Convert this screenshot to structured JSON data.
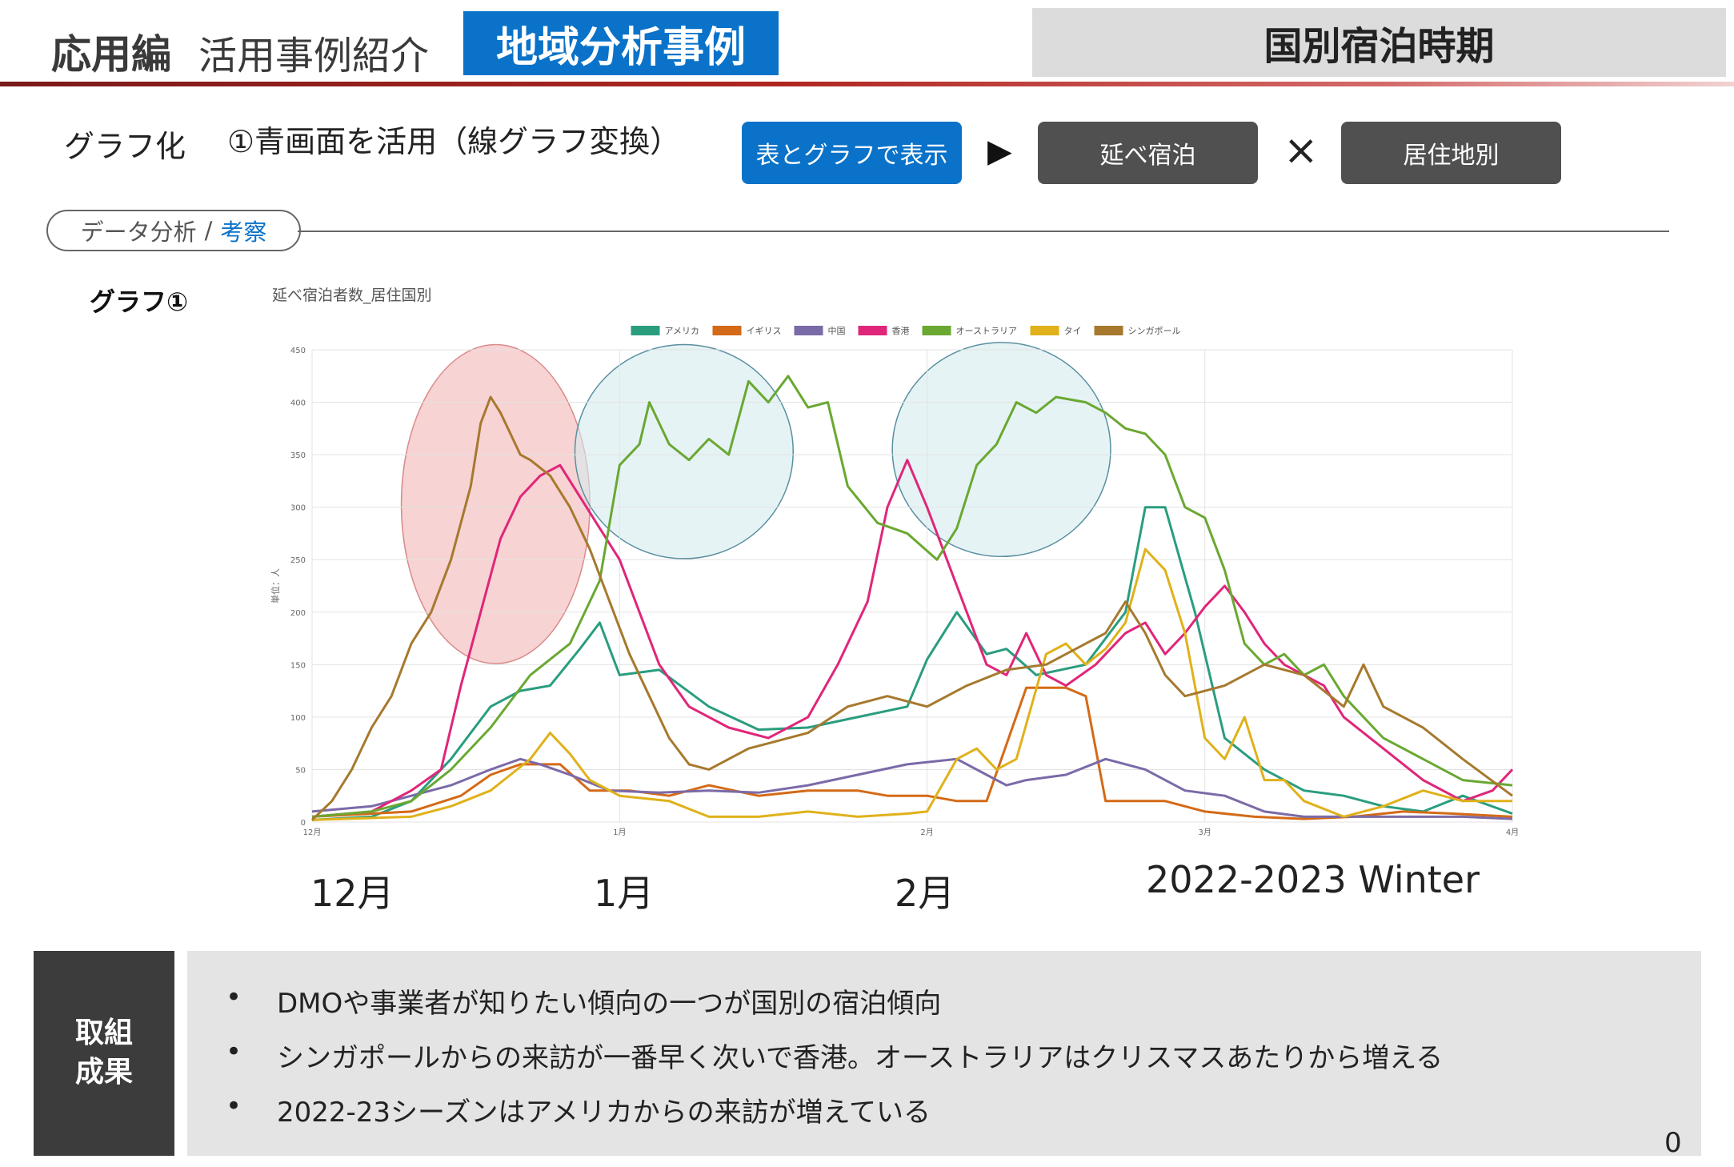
{
  "header": {
    "main": "応用編",
    "sub": "活用事例紹介",
    "tag": "地域分析事例",
    "right": "国別宿泊時期"
  },
  "steps": {
    "label": "グラフ化",
    "description": "①青画面を活用（線グラフ変換）",
    "button_table": "表とグラフで表示",
    "arrow": "▶",
    "button_nobe": "延べ宿泊",
    "times": "×",
    "button_residence": "居住地別"
  },
  "analysis_pill": {
    "left": "データ分析",
    "sep": "/",
    "right": "考察"
  },
  "graph_label": "グラフ①",
  "chart_data": {
    "type": "line",
    "title": "延べ宿泊者数_居住国別",
    "ylabel": "単位：人",
    "ylim": [
      0,
      450
    ],
    "y_ticks": [
      0,
      50,
      100,
      150,
      200,
      250,
      300,
      350,
      400,
      450
    ],
    "x_tick_labels": [
      "12月",
      "1月",
      "2月",
      "3月",
      "4月"
    ],
    "x_tick_days": [
      0,
      31,
      62,
      90,
      121
    ],
    "x_range_days": [
      0,
      121
    ],
    "legend_position": "top",
    "grid": true,
    "big_labels": [
      "12月",
      "1月",
      "2月",
      "2022-2023 Winter"
    ],
    "highlight_ellipses": [
      {
        "center_day": 18.5,
        "center_value": 303,
        "half_width_days": 9.5,
        "half_height_value": 152,
        "color": "#f2b5b5"
      },
      {
        "center_day": 37.5,
        "center_value": 353,
        "half_width_days": 11,
        "half_height_value": 102,
        "color": "#d6ebee"
      },
      {
        "center_day": 69.5,
        "center_value": 355,
        "half_width_days": 11,
        "half_height_value": 102,
        "color": "#d6ebee"
      }
    ],
    "series": [
      {
        "name": "アメリカ",
        "color": "#2a9d7f",
        "points": [
          [
            0,
            2
          ],
          [
            6,
            5
          ],
          [
            10,
            20
          ],
          [
            14,
            60
          ],
          [
            18,
            110
          ],
          [
            21,
            125
          ],
          [
            24,
            130
          ],
          [
            27,
            165
          ],
          [
            29,
            190
          ],
          [
            31,
            140
          ],
          [
            35,
            145
          ],
          [
            40,
            110
          ],
          [
            45,
            88
          ],
          [
            50,
            90
          ],
          [
            55,
            100
          ],
          [
            60,
            110
          ],
          [
            62,
            155
          ],
          [
            65,
            200
          ],
          [
            68,
            160
          ],
          [
            70,
            165
          ],
          [
            73,
            140
          ],
          [
            78,
            150
          ],
          [
            82,
            200
          ],
          [
            84,
            300
          ],
          [
            86,
            300
          ],
          [
            89,
            200
          ],
          [
            92,
            80
          ],
          [
            96,
            50
          ],
          [
            100,
            30
          ],
          [
            104,
            25
          ],
          [
            108,
            15
          ],
          [
            112,
            10
          ],
          [
            116,
            25
          ],
          [
            121,
            8
          ]
        ]
      },
      {
        "name": "イギリス",
        "color": "#d46a17",
        "points": [
          [
            0,
            5
          ],
          [
            10,
            10
          ],
          [
            15,
            25
          ],
          [
            18,
            45
          ],
          [
            21,
            55
          ],
          [
            25,
            55
          ],
          [
            28,
            30
          ],
          [
            32,
            30
          ],
          [
            36,
            25
          ],
          [
            40,
            35
          ],
          [
            45,
            25
          ],
          [
            50,
            30
          ],
          [
            55,
            30
          ],
          [
            58,
            25
          ],
          [
            62,
            25
          ],
          [
            65,
            20
          ],
          [
            68,
            20
          ],
          [
            72,
            128
          ],
          [
            76,
            128
          ],
          [
            78,
            120
          ],
          [
            80,
            20
          ],
          [
            86,
            20
          ],
          [
            90,
            10
          ],
          [
            95,
            5
          ],
          [
            100,
            3
          ],
          [
            105,
            5
          ],
          [
            110,
            10
          ],
          [
            115,
            8
          ],
          [
            121,
            5
          ]
        ]
      },
      {
        "name": "中国",
        "color": "#7b6aa8",
        "points": [
          [
            0,
            10
          ],
          [
            6,
            15
          ],
          [
            10,
            25
          ],
          [
            14,
            35
          ],
          [
            18,
            50
          ],
          [
            21,
            60
          ],
          [
            23,
            55
          ],
          [
            26,
            45
          ],
          [
            30,
            30
          ],
          [
            35,
            28
          ],
          [
            40,
            30
          ],
          [
            45,
            28
          ],
          [
            50,
            35
          ],
          [
            55,
            45
          ],
          [
            60,
            55
          ],
          [
            65,
            60
          ],
          [
            68,
            45
          ],
          [
            70,
            35
          ],
          [
            72,
            40
          ],
          [
            76,
            45
          ],
          [
            80,
            60
          ],
          [
            84,
            50
          ],
          [
            88,
            30
          ],
          [
            92,
            25
          ],
          [
            96,
            10
          ],
          [
            100,
            5
          ],
          [
            105,
            5
          ],
          [
            110,
            5
          ],
          [
            116,
            5
          ],
          [
            121,
            3
          ]
        ]
      },
      {
        "name": "香港",
        "color": "#e0267a",
        "points": [
          [
            0,
            5
          ],
          [
            6,
            10
          ],
          [
            10,
            30
          ],
          [
            13,
            50
          ],
          [
            15,
            130
          ],
          [
            17,
            200
          ],
          [
            19,
            270
          ],
          [
            21,
            310
          ],
          [
            23,
            330
          ],
          [
            25,
            340
          ],
          [
            27,
            310
          ],
          [
            29,
            280
          ],
          [
            31,
            250
          ],
          [
            33,
            200
          ],
          [
            35,
            150
          ],
          [
            38,
            110
          ],
          [
            42,
            90
          ],
          [
            46,
            80
          ],
          [
            50,
            100
          ],
          [
            53,
            150
          ],
          [
            56,
            210
          ],
          [
            58,
            300
          ],
          [
            60,
            345
          ],
          [
            62,
            300
          ],
          [
            64,
            250
          ],
          [
            66,
            200
          ],
          [
            68,
            150
          ],
          [
            70,
            140
          ],
          [
            72,
            180
          ],
          [
            74,
            140
          ],
          [
            76,
            130
          ],
          [
            79,
            150
          ],
          [
            82,
            180
          ],
          [
            84,
            190
          ],
          [
            86,
            160
          ],
          [
            88,
            180
          ],
          [
            90,
            205
          ],
          [
            92,
            225
          ],
          [
            94,
            200
          ],
          [
            96,
            170
          ],
          [
            98,
            150
          ],
          [
            100,
            140
          ],
          [
            102,
            130
          ],
          [
            104,
            100
          ],
          [
            108,
            70
          ],
          [
            112,
            40
          ],
          [
            116,
            20
          ],
          [
            119,
            30
          ],
          [
            121,
            50
          ]
        ]
      },
      {
        "name": "オーストラリア",
        "color": "#6aa832",
        "points": [
          [
            0,
            5
          ],
          [
            6,
            10
          ],
          [
            10,
            20
          ],
          [
            14,
            50
          ],
          [
            18,
            90
          ],
          [
            22,
            140
          ],
          [
            26,
            170
          ],
          [
            29,
            230
          ],
          [
            31,
            340
          ],
          [
            33,
            360
          ],
          [
            34,
            400
          ],
          [
            36,
            360
          ],
          [
            38,
            345
          ],
          [
            40,
            365
          ],
          [
            42,
            350
          ],
          [
            44,
            420
          ],
          [
            46,
            400
          ],
          [
            48,
            425
          ],
          [
            50,
            395
          ],
          [
            52,
            400
          ],
          [
            54,
            320
          ],
          [
            57,
            285
          ],
          [
            60,
            275
          ],
          [
            63,
            250
          ],
          [
            65,
            280
          ],
          [
            67,
            340
          ],
          [
            69,
            360
          ],
          [
            71,
            400
          ],
          [
            73,
            390
          ],
          [
            75,
            405
          ],
          [
            78,
            400
          ],
          [
            80,
            390
          ],
          [
            82,
            375
          ],
          [
            84,
            370
          ],
          [
            86,
            350
          ],
          [
            88,
            300
          ],
          [
            90,
            290
          ],
          [
            92,
            240
          ],
          [
            94,
            170
          ],
          [
            96,
            150
          ],
          [
            98,
            160
          ],
          [
            100,
            140
          ],
          [
            102,
            150
          ],
          [
            104,
            120
          ],
          [
            108,
            80
          ],
          [
            112,
            60
          ],
          [
            116,
            40
          ],
          [
            121,
            35
          ]
        ]
      },
      {
        "name": "タイ",
        "color": "#e0b11a",
        "points": [
          [
            0,
            2
          ],
          [
            10,
            5
          ],
          [
            14,
            15
          ],
          [
            18,
            30
          ],
          [
            20,
            45
          ],
          [
            22,
            60
          ],
          [
            24,
            85
          ],
          [
            26,
            65
          ],
          [
            28,
            40
          ],
          [
            31,
            25
          ],
          [
            36,
            20
          ],
          [
            40,
            5
          ],
          [
            45,
            5
          ],
          [
            50,
            10
          ],
          [
            55,
            5
          ],
          [
            60,
            8
          ],
          [
            62,
            10
          ],
          [
            65,
            60
          ],
          [
            67,
            70
          ],
          [
            69,
            50
          ],
          [
            71,
            60
          ],
          [
            74,
            160
          ],
          [
            76,
            170
          ],
          [
            78,
            150
          ],
          [
            80,
            165
          ],
          [
            82,
            190
          ],
          [
            84,
            260
          ],
          [
            86,
            240
          ],
          [
            88,
            180
          ],
          [
            90,
            80
          ],
          [
            92,
            60
          ],
          [
            94,
            100
          ],
          [
            96,
            40
          ],
          [
            98,
            40
          ],
          [
            100,
            20
          ],
          [
            104,
            5
          ],
          [
            108,
            15
          ],
          [
            112,
            30
          ],
          [
            116,
            20
          ],
          [
            121,
            20
          ]
        ]
      },
      {
        "name": "シンガポール",
        "color": "#a6792e",
        "points": [
          [
            0,
            2
          ],
          [
            2,
            20
          ],
          [
            4,
            50
          ],
          [
            6,
            90
          ],
          [
            8,
            120
          ],
          [
            10,
            170
          ],
          [
            12,
            200
          ],
          [
            14,
            250
          ],
          [
            16,
            320
          ],
          [
            17,
            380
          ],
          [
            18,
            405
          ],
          [
            19,
            390
          ],
          [
            20,
            370
          ],
          [
            21,
            350
          ],
          [
            22,
            345
          ],
          [
            24,
            330
          ],
          [
            26,
            300
          ],
          [
            28,
            260
          ],
          [
            30,
            210
          ],
          [
            32,
            160
          ],
          [
            34,
            120
          ],
          [
            36,
            80
          ],
          [
            38,
            55
          ],
          [
            40,
            50
          ],
          [
            42,
            60
          ],
          [
            44,
            70
          ],
          [
            46,
            75
          ],
          [
            50,
            85
          ],
          [
            54,
            110
          ],
          [
            58,
            120
          ],
          [
            62,
            110
          ],
          [
            66,
            130
          ],
          [
            70,
            145
          ],
          [
            74,
            150
          ],
          [
            78,
            170
          ],
          [
            80,
            180
          ],
          [
            82,
            210
          ],
          [
            84,
            180
          ],
          [
            86,
            140
          ],
          [
            88,
            120
          ],
          [
            92,
            130
          ],
          [
            96,
            150
          ],
          [
            100,
            140
          ],
          [
            104,
            110
          ],
          [
            106,
            150
          ],
          [
            108,
            110
          ],
          [
            112,
            90
          ],
          [
            116,
            60
          ],
          [
            121,
            25
          ]
        ]
      }
    ]
  },
  "result": {
    "label_line1": "取組",
    "label_line2": "成果",
    "bullet_char": "•",
    "bullets": [
      "DMOや事業者が知りたい傾向の一つが国別の宿泊傾向",
      "シンガポールからの来訪が一番早く次いで香港。オーストラリアはクリスマスあたりから増える",
      "2022-23シーズンはアメリカからの来訪が増えている"
    ]
  },
  "page_number": "0"
}
